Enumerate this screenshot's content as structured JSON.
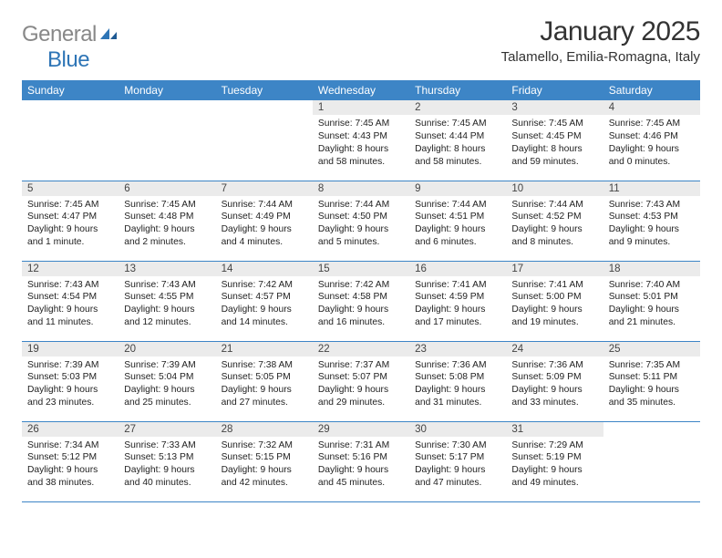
{
  "logo": {
    "gray": "General",
    "blue": "Blue"
  },
  "header": {
    "title": "January 2025",
    "location": "Talamello, Emilia-Romagna, Italy"
  },
  "colors": {
    "header_bg": "#3d85c6",
    "daynum_bg": "#ebebeb",
    "divider": "#3d85c6",
    "logo_gray": "#888888",
    "logo_blue": "#2e75b6"
  },
  "weekdays": [
    "Sunday",
    "Monday",
    "Tuesday",
    "Wednesday",
    "Thursday",
    "Friday",
    "Saturday"
  ],
  "weeks": [
    [
      null,
      null,
      null,
      {
        "n": "1",
        "sr": "7:45 AM",
        "ss": "4:43 PM",
        "dl": "8 hours and 58 minutes."
      },
      {
        "n": "2",
        "sr": "7:45 AM",
        "ss": "4:44 PM",
        "dl": "8 hours and 58 minutes."
      },
      {
        "n": "3",
        "sr": "7:45 AM",
        "ss": "4:45 PM",
        "dl": "8 hours and 59 minutes."
      },
      {
        "n": "4",
        "sr": "7:45 AM",
        "ss": "4:46 PM",
        "dl": "9 hours and 0 minutes."
      }
    ],
    [
      {
        "n": "5",
        "sr": "7:45 AM",
        "ss": "4:47 PM",
        "dl": "9 hours and 1 minute."
      },
      {
        "n": "6",
        "sr": "7:45 AM",
        "ss": "4:48 PM",
        "dl": "9 hours and 2 minutes."
      },
      {
        "n": "7",
        "sr": "7:44 AM",
        "ss": "4:49 PM",
        "dl": "9 hours and 4 minutes."
      },
      {
        "n": "8",
        "sr": "7:44 AM",
        "ss": "4:50 PM",
        "dl": "9 hours and 5 minutes."
      },
      {
        "n": "9",
        "sr": "7:44 AM",
        "ss": "4:51 PM",
        "dl": "9 hours and 6 minutes."
      },
      {
        "n": "10",
        "sr": "7:44 AM",
        "ss": "4:52 PM",
        "dl": "9 hours and 8 minutes."
      },
      {
        "n": "11",
        "sr": "7:43 AM",
        "ss": "4:53 PM",
        "dl": "9 hours and 9 minutes."
      }
    ],
    [
      {
        "n": "12",
        "sr": "7:43 AM",
        "ss": "4:54 PM",
        "dl": "9 hours and 11 minutes."
      },
      {
        "n": "13",
        "sr": "7:43 AM",
        "ss": "4:55 PM",
        "dl": "9 hours and 12 minutes."
      },
      {
        "n": "14",
        "sr": "7:42 AM",
        "ss": "4:57 PM",
        "dl": "9 hours and 14 minutes."
      },
      {
        "n": "15",
        "sr": "7:42 AM",
        "ss": "4:58 PM",
        "dl": "9 hours and 16 minutes."
      },
      {
        "n": "16",
        "sr": "7:41 AM",
        "ss": "4:59 PM",
        "dl": "9 hours and 17 minutes."
      },
      {
        "n": "17",
        "sr": "7:41 AM",
        "ss": "5:00 PM",
        "dl": "9 hours and 19 minutes."
      },
      {
        "n": "18",
        "sr": "7:40 AM",
        "ss": "5:01 PM",
        "dl": "9 hours and 21 minutes."
      }
    ],
    [
      {
        "n": "19",
        "sr": "7:39 AM",
        "ss": "5:03 PM",
        "dl": "9 hours and 23 minutes."
      },
      {
        "n": "20",
        "sr": "7:39 AM",
        "ss": "5:04 PM",
        "dl": "9 hours and 25 minutes."
      },
      {
        "n": "21",
        "sr": "7:38 AM",
        "ss": "5:05 PM",
        "dl": "9 hours and 27 minutes."
      },
      {
        "n": "22",
        "sr": "7:37 AM",
        "ss": "5:07 PM",
        "dl": "9 hours and 29 minutes."
      },
      {
        "n": "23",
        "sr": "7:36 AM",
        "ss": "5:08 PM",
        "dl": "9 hours and 31 minutes."
      },
      {
        "n": "24",
        "sr": "7:36 AM",
        "ss": "5:09 PM",
        "dl": "9 hours and 33 minutes."
      },
      {
        "n": "25",
        "sr": "7:35 AM",
        "ss": "5:11 PM",
        "dl": "9 hours and 35 minutes."
      }
    ],
    [
      {
        "n": "26",
        "sr": "7:34 AM",
        "ss": "5:12 PM",
        "dl": "9 hours and 38 minutes."
      },
      {
        "n": "27",
        "sr": "7:33 AM",
        "ss": "5:13 PM",
        "dl": "9 hours and 40 minutes."
      },
      {
        "n": "28",
        "sr": "7:32 AM",
        "ss": "5:15 PM",
        "dl": "9 hours and 42 minutes."
      },
      {
        "n": "29",
        "sr": "7:31 AM",
        "ss": "5:16 PM",
        "dl": "9 hours and 45 minutes."
      },
      {
        "n": "30",
        "sr": "7:30 AM",
        "ss": "5:17 PM",
        "dl": "9 hours and 47 minutes."
      },
      {
        "n": "31",
        "sr": "7:29 AM",
        "ss": "5:19 PM",
        "dl": "9 hours and 49 minutes."
      },
      null
    ]
  ],
  "labels": {
    "sunrise": "Sunrise:",
    "sunset": "Sunset:",
    "daylight": "Daylight:"
  }
}
